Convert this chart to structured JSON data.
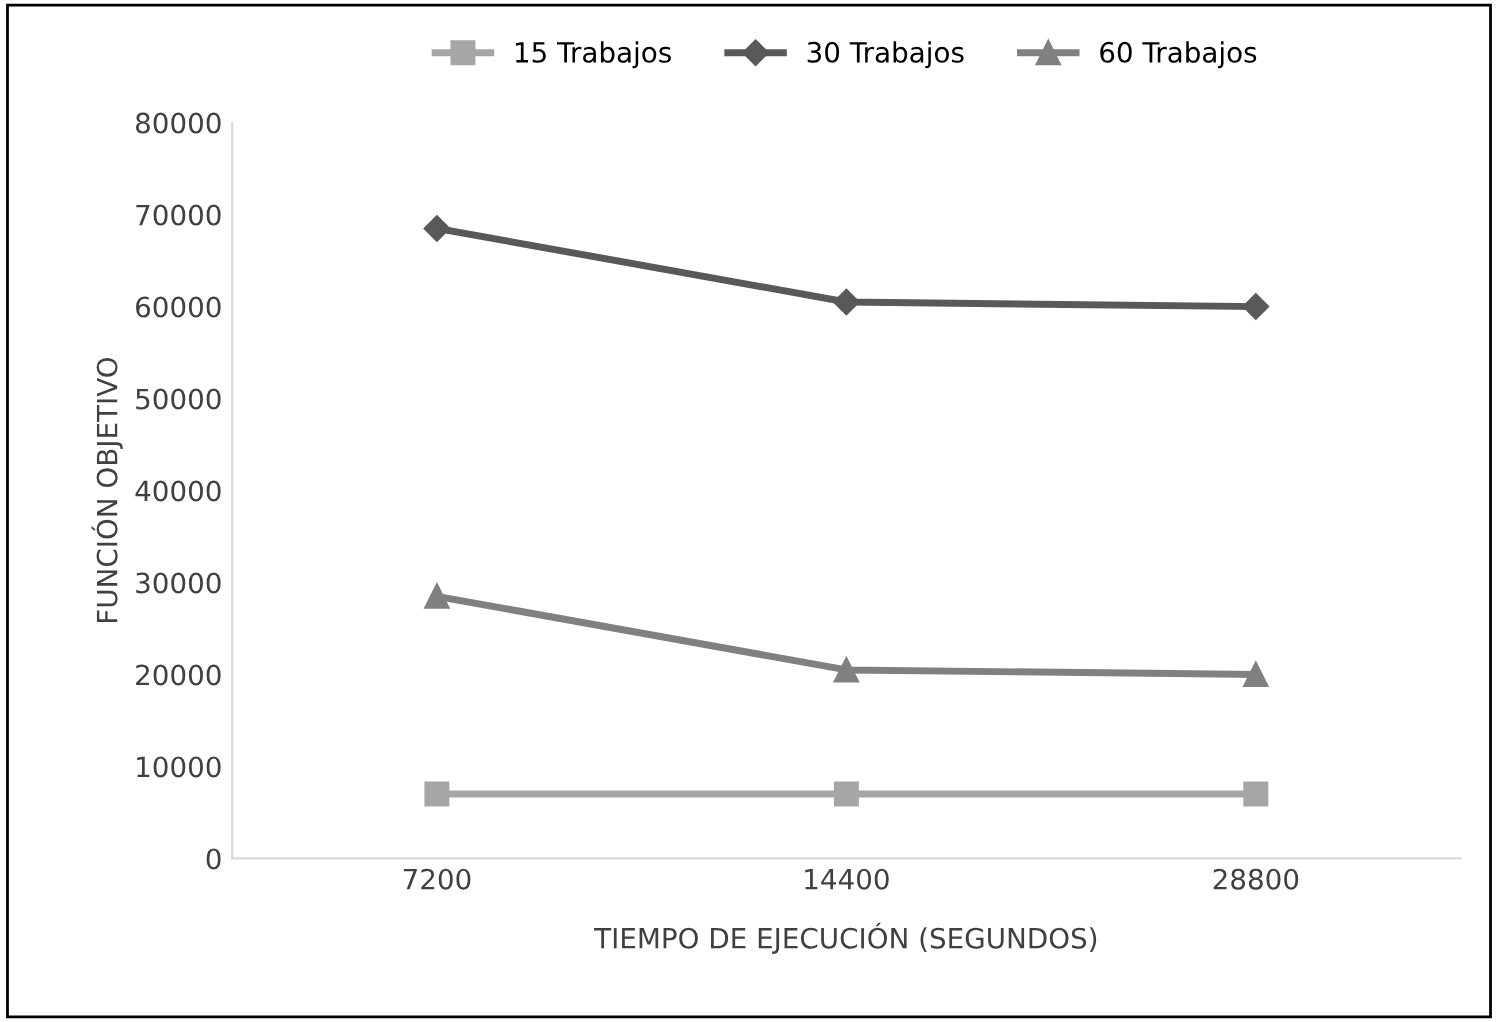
{
  "chart_data": {
    "type": "line",
    "xlabel": "TIEMPO DE EJECUCIÓN (SEGUNDOS)",
    "ylabel": "FUNCIÓN OBJETIVO",
    "categories": [
      "7200",
      "14400",
      "28800"
    ],
    "series": [
      {
        "name": "15 Trabajos",
        "color": "#a6a6a6",
        "marker": "square",
        "values": [
          7000,
          7000,
          7000
        ]
      },
      {
        "name": "30 Trabajos",
        "color": "#595959",
        "marker": "diamond",
        "values": [
          68500,
          60500,
          60000
        ]
      },
      {
        "name": "60 Trabajos",
        "color": "#808080",
        "marker": "triangle",
        "values": [
          28500,
          20500,
          20000
        ]
      }
    ],
    "ylim": [
      0,
      80000
    ],
    "yticks": [
      0,
      10000,
      20000,
      30000,
      40000,
      50000,
      60000,
      70000,
      80000
    ],
    "grid": false,
    "legend": "top",
    "line_style": "solid"
  }
}
